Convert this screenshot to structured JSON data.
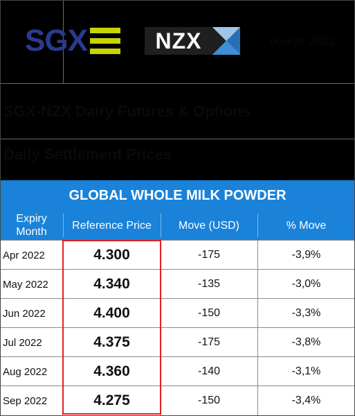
{
  "header": {
    "sgx_logo_text": "SGX",
    "nzx_logo_text": "NZX",
    "date": "06-Apr-2022",
    "subtitle": "SGX-NZX Dairy Futures & Options",
    "section": "Daily Settlement Prices"
  },
  "colors": {
    "table_header_bg": "#1a82d9",
    "sgx_blue": "#2b3a8f",
    "sgx_bars": "#c8d400",
    "highlight_border": "#e02020"
  },
  "table": {
    "title": "GLOBAL WHOLE MILK POWDER",
    "columns": {
      "month_line1": "Expiry",
      "month_line2": "Month",
      "ref": "Reference Price",
      "move": "Move (USD)",
      "pct": "% Move"
    },
    "rows": [
      {
        "month": "Apr 2022",
        "ref": "4.300",
        "move": "-175",
        "pct": "-3,9%"
      },
      {
        "month": "May 2022",
        "ref": "4.340",
        "move": "-135",
        "pct": "-3,0%"
      },
      {
        "month": "Jun 2022",
        "ref": "4.400",
        "move": "-150",
        "pct": "-3,3%"
      },
      {
        "month": "Jul 2022",
        "ref": "4.375",
        "move": "-175",
        "pct": "-3,8%"
      },
      {
        "month": "Aug 2022",
        "ref": "4.360",
        "move": "-140",
        "pct": "-3,1%"
      },
      {
        "month": "Sep 2022",
        "ref": "4.275",
        "move": "-150",
        "pct": "-3,4%"
      }
    ]
  }
}
